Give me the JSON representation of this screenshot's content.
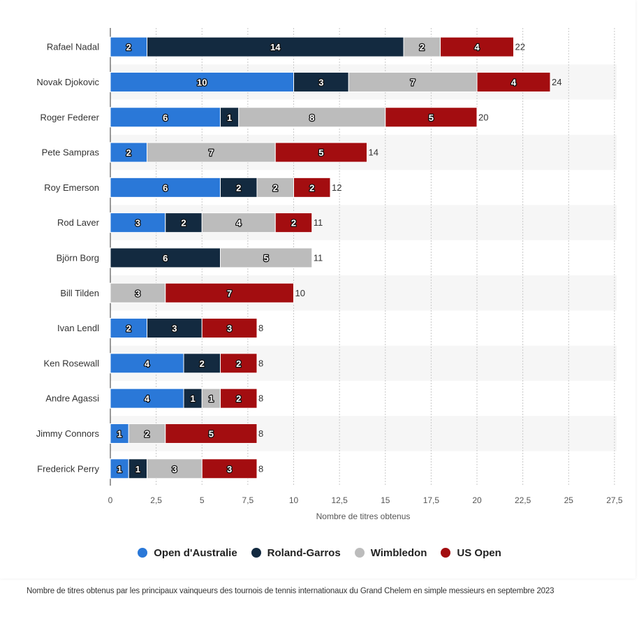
{
  "chart_data": {
    "type": "bar",
    "orientation": "horizontal",
    "stacked": true,
    "categories": [
      "Rafael Nadal",
      "Novak Djokovic",
      "Roger Federer",
      "Pete Sampras",
      "Roy Emerson",
      "Rod Laver",
      "Björn Borg",
      "Bill Tilden",
      "Ivan Lendl",
      "Ken Rosewall",
      "Andre Agassi",
      "Jimmy Connors",
      "Frederick Perry"
    ],
    "series": [
      {
        "name": "Open d'Australie",
        "color": "#2a78d8",
        "values": [
          2,
          10,
          6,
          2,
          6,
          3,
          0,
          0,
          2,
          4,
          4,
          1,
          1
        ]
      },
      {
        "name": "Roland-Garros",
        "color": "#132a40",
        "values": [
          14,
          3,
          1,
          0,
          2,
          2,
          6,
          0,
          3,
          2,
          1,
          0,
          1
        ]
      },
      {
        "name": "Wimbledon",
        "color": "#bcbcbc",
        "values": [
          2,
          7,
          8,
          7,
          2,
          4,
          5,
          3,
          0,
          0,
          1,
          2,
          3
        ]
      },
      {
        "name": "US Open",
        "color": "#a30d10",
        "values": [
          4,
          4,
          5,
          5,
          2,
          2,
          0,
          7,
          3,
          2,
          2,
          5,
          3
        ]
      }
    ],
    "totals": [
      "22",
      "24",
      "20",
      "14",
      "12",
      "11",
      "11",
      "10",
      "8",
      "8",
      "8",
      "8",
      "8"
    ],
    "xlabel": "Nombre de titres obtenus",
    "ylabel": "",
    "xlim": [
      0,
      27.5
    ],
    "x_ticks": [
      0,
      2.5,
      5,
      7.5,
      10,
      12.5,
      15,
      17.5,
      20,
      22.5,
      25,
      27.5
    ],
    "x_tick_labels": [
      "0",
      "2,5",
      "5",
      "7,5",
      "10",
      "12,5",
      "15",
      "17,5",
      "20",
      "22,5",
      "25",
      "27,5"
    ],
    "grid": "vertical dashed",
    "legend_position": "bottom"
  },
  "caption": "Nombre de titres obtenus par les principaux vainqueurs des tournois de tennis internationaux du Grand Chelem en simple messieurs en septembre 2023"
}
